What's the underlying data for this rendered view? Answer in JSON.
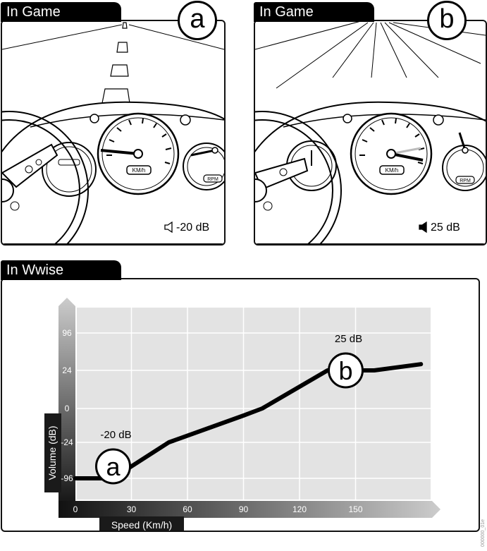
{
  "panel_a": {
    "tab": "In Game",
    "badge": "a",
    "volume": "-20 dB",
    "speed_label": "KM/h",
    "rpm_label": "RPM"
  },
  "panel_b": {
    "tab": "In Game",
    "badge": "b",
    "volume": "25 dB",
    "speed_label": "KM/h",
    "rpm_label": "RPM"
  },
  "wwise": {
    "tab": "In Wwise"
  },
  "chart_data": {
    "type": "line",
    "xlabel": "Speed (Km/h)",
    "ylabel": "Volume (dB)",
    "x_ticks": [
      "0",
      "30",
      "60",
      "90",
      "120",
      "150"
    ],
    "y_ticks": [
      "96",
      "24",
      "0",
      "-24",
      "-96"
    ],
    "series": [
      {
        "points": [
          [
            0,
            -96
          ],
          [
            20,
            -96
          ],
          [
            35,
            -60
          ],
          [
            50,
            -24
          ],
          [
            90,
            -5
          ],
          [
            100,
            0
          ],
          [
            135,
            24
          ],
          [
            150,
            24
          ],
          [
            160,
            24
          ],
          [
            185,
            36
          ]
        ]
      }
    ],
    "annotations": [
      {
        "badge": "a",
        "label": "-20 dB",
        "x": 30
      },
      {
        "badge": "b",
        "label": "25 dB",
        "x": 150
      }
    ],
    "grid": true,
    "colors": {
      "line": "#000000",
      "plot_bg": "#e3e3e3",
      "grid": "#ffffff",
      "axis_dark": "#1a1a1a",
      "axis_light": "#c8c8c8"
    }
  },
  "footer": {
    "code": "000000_01e"
  }
}
